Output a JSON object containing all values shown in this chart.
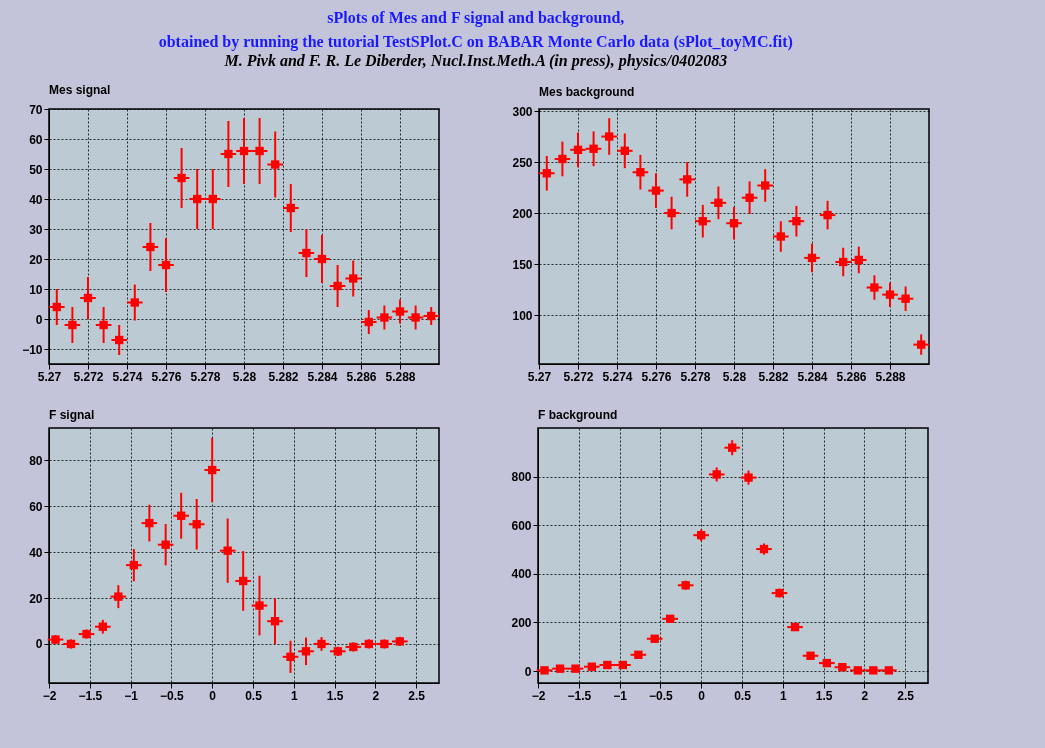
{
  "chart_data": [
    {
      "type": "scatter",
      "title": "Mes signal",
      "annotations": [
        "sPlots of Mes and F signal and background,",
        "obtained by running the tutorial TestSPlot.C on BABAR Monte Carlo data (sPlot_toyMC.fit)",
        "M. Pivk and F. R. Le Diberder, Nucl.Inst.Meth.A (in press), physics/0402083"
      ],
      "x": [
        5.2704,
        5.2712,
        5.272,
        5.2728,
        5.2736,
        5.2744,
        5.2752,
        5.276,
        5.2768,
        5.2776,
        5.2784,
        5.2792,
        5.28,
        5.2808,
        5.2816,
        5.2824,
        5.2832,
        5.284,
        5.2848,
        5.2856,
        5.2864,
        5.2872,
        5.288,
        5.2888,
        5.2896
      ],
      "series": [
        {
          "color": "#ff0000",
          "values": [
            4,
            -2,
            7,
            -2,
            -7,
            5.5,
            24,
            18,
            47,
            40,
            40,
            55,
            56,
            56,
            51.5,
            37,
            22,
            20,
            11,
            13.5,
            -1,
            0.5,
            2.5,
            0.5,
            1
          ],
          "errors": [
            6,
            6,
            7,
            6,
            5,
            6,
            8,
            9,
            10,
            10,
            10,
            11,
            11,
            11,
            11,
            8,
            8,
            8,
            7,
            6,
            4,
            4,
            4,
            4,
            3
          ],
          "xerrors": [
            0.0004,
            0.0004,
            0.0004,
            0.0004,
            0.0004,
            0.0004,
            0.0004,
            0.0004,
            0.0004,
            0.0004,
            0.0004,
            0.0004,
            0.0004,
            0.0004,
            0.0004,
            0.0004,
            0.0004,
            0.0004,
            0.0004,
            0.0004,
            0.0004,
            0.0004,
            0.0004,
            0.0004,
            0.0004
          ]
        }
      ],
      "xlim": [
        5.27,
        5.29
      ],
      "xticks": [
        5.27,
        5.272,
        5.274,
        5.276,
        5.278,
        5.28,
        5.282,
        5.284,
        5.286,
        5.288
      ],
      "ylim": [
        -15,
        70
      ],
      "yticks": [
        -10,
        0,
        10,
        20,
        30,
        40,
        50,
        60,
        70
      ],
      "grid": true,
      "marker": "square"
    },
    {
      "type": "scatter",
      "title": "Mes background",
      "x": [
        5.2704,
        5.2712,
        5.272,
        5.2728,
        5.2736,
        5.2744,
        5.2752,
        5.276,
        5.2768,
        5.2776,
        5.2784,
        5.2792,
        5.28,
        5.2808,
        5.2816,
        5.2824,
        5.2832,
        5.284,
        5.2848,
        5.2856,
        5.2864,
        5.2872,
        5.288,
        5.2888,
        5.2896
      ],
      "series": [
        {
          "color": "#ff0000",
          "values": [
            239,
            253,
            262,
            263,
            275,
            261,
            240,
            222,
            200,
            233,
            192,
            210,
            190,
            215,
            227,
            177,
            192,
            156,
            198,
            152,
            154,
            127,
            120,
            116,
            71
          ],
          "errors": [
            17,
            17,
            17,
            17,
            18,
            17,
            17,
            17,
            16,
            17,
            16,
            16,
            16,
            16,
            16,
            15,
            15,
            14,
            14,
            14,
            13,
            12,
            12,
            12,
            10
          ],
          "xerrors": [
            0.0004,
            0.0004,
            0.0004,
            0.0004,
            0.0004,
            0.0004,
            0.0004,
            0.0004,
            0.0004,
            0.0004,
            0.0004,
            0.0004,
            0.0004,
            0.0004,
            0.0004,
            0.0004,
            0.0004,
            0.0004,
            0.0004,
            0.0004,
            0.0004,
            0.0004,
            0.0004,
            0.0004,
            0.0004
          ]
        }
      ],
      "xlim": [
        5.27,
        5.29
      ],
      "xticks": [
        5.27,
        5.272,
        5.274,
        5.276,
        5.278,
        5.28,
        5.282,
        5.284,
        5.286,
        5.288
      ],
      "ylim": [
        52,
        302
      ],
      "yticks": [
        100,
        150,
        200,
        250,
        300
      ],
      "grid": true,
      "marker": "square"
    },
    {
      "type": "scatter",
      "title": "F signal",
      "x": [
        -1.92,
        -1.73,
        -1.54,
        -1.34,
        -1.15,
        -0.96,
        -0.77,
        -0.57,
        -0.38,
        -0.19,
        0,
        0.19,
        0.38,
        0.58,
        0.77,
        0.96,
        1.15,
        1.34,
        1.54,
        1.73,
        1.92,
        2.11,
        2.3
      ],
      "series": [
        {
          "color": "#ff0000",
          "values": [
            1.9,
            0,
            4.3,
            7.5,
            20.6,
            34.3,
            52.6,
            43.2,
            55.8,
            52.1,
            75.7,
            40.6,
            27.4,
            16.7,
            9.9,
            -5.6,
            -3.2,
            0,
            -3.2,
            -1.3,
            0,
            0,
            1.1
          ],
          "errors": [
            2,
            2,
            2,
            3,
            5,
            7,
            8,
            9,
            10,
            11,
            14,
            14,
            13,
            13,
            10,
            7,
            6,
            3,
            2,
            2,
            2,
            2,
            2
          ],
          "xerrors": [
            0.096,
            0.096,
            0.096,
            0.096,
            0.096,
            0.096,
            0.096,
            0.096,
            0.096,
            0.096,
            0.096,
            0.096,
            0.096,
            0.096,
            0.096,
            0.096,
            0.096,
            0.096,
            0.096,
            0.096,
            0.096,
            0.096,
            0.096
          ]
        }
      ],
      "xlim": [
        -2,
        2.78
      ],
      "xticks": [
        -2,
        -1.5,
        -1,
        -0.5,
        0,
        0.5,
        1,
        1.5,
        2,
        2.5
      ],
      "ylim": [
        -17,
        94
      ],
      "yticks": [
        0,
        20,
        40,
        60,
        80
      ],
      "grid": true,
      "marker": "square"
    },
    {
      "type": "scatter",
      "title": "F background",
      "x": [
        -1.92,
        -1.73,
        -1.54,
        -1.34,
        -1.15,
        -0.96,
        -0.77,
        -0.57,
        -0.38,
        -0.19,
        0,
        0.19,
        0.38,
        0.58,
        0.77,
        0.96,
        1.15,
        1.34,
        1.54,
        1.73,
        1.92,
        2.11,
        2.3
      ],
      "series": [
        {
          "color": "#ff0000",
          "values": [
            3,
            10,
            10,
            18,
            25,
            25,
            67,
            133,
            215,
            353,
            559,
            809,
            919,
            796,
            502,
            321,
            181,
            63,
            33,
            16,
            3,
            3,
            3
          ],
          "errors": [
            3,
            4,
            4,
            5,
            6,
            6,
            9,
            12,
            15,
            19,
            24,
            29,
            31,
            29,
            23,
            18,
            14,
            8,
            6,
            4,
            2,
            2,
            2
          ],
          "xerrors": [
            0.096,
            0.096,
            0.096,
            0.096,
            0.096,
            0.096,
            0.096,
            0.096,
            0.096,
            0.096,
            0.096,
            0.096,
            0.096,
            0.096,
            0.096,
            0.096,
            0.096,
            0.096,
            0.096,
            0.096,
            0.096,
            0.096,
            0.096
          ]
        }
      ],
      "xlim": [
        -2,
        2.78
      ],
      "xticks": [
        -2,
        -1.5,
        -1,
        -0.5,
        0,
        0.5,
        1,
        1.5,
        2,
        2.5
      ],
      "ylim": [
        -49,
        1000
      ],
      "yticks": [
        0,
        200,
        400,
        600,
        800
      ],
      "grid": true,
      "marker": "square"
    }
  ]
}
